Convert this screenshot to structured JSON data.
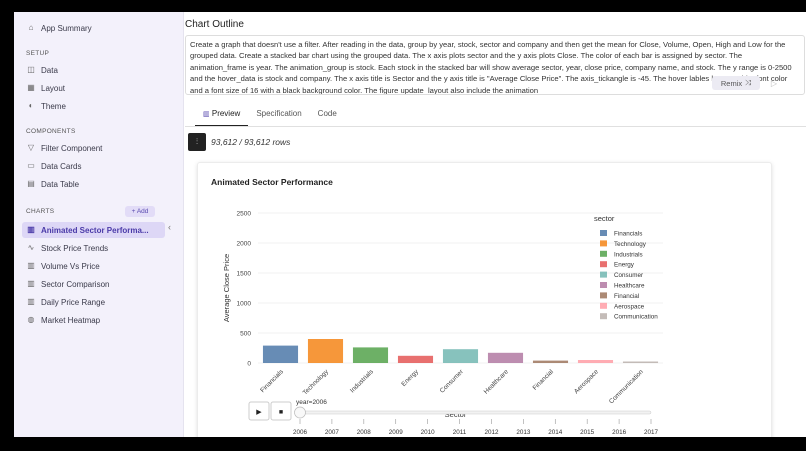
{
  "sidebar": {
    "app_summary": "App Summary",
    "setup_label": "SETUP",
    "setup_items": [
      "Data",
      "Layout",
      "Theme"
    ],
    "components_label": "COMPONENTS",
    "component_items": [
      "Filter Component",
      "Data Cards",
      "Data Table"
    ],
    "charts_label": "CHARTS",
    "add_label": "+ Add",
    "chart_items": [
      "Animated Sector Performa...",
      "Stock Price Trends",
      "Volume Vs Price",
      "Sector Comparison",
      "Daily Price Range",
      "Market Heatmap"
    ]
  },
  "main": {
    "outline_title": "Chart Outline",
    "outline_text": "Create a graph that doesn't use a filter.  After reading in the data, group by year, stock, sector and company and then get the mean for Close, Volume, Open, High and Low for the grouped data.   Create a stacked bar chart using the grouped data.  The x axis plots sector and the y axis plots Close. The color of each bar is assigned by sector. The animation_frame is year. The animation_group is stock.  Each stock in the stacked bar will show average sector, year, close price, company name, and stock.  The y range is 0-2500 and the hover_data is stock and company.  The x axis title is Sector and the y axis title is \"Average Close Price\". The axis_tickangle is -45.  The hover lables have a white font color and a font size of 16 with a black background color.  The figure update_layout also include the animation",
    "remix_label": "Remix",
    "tabs": [
      "Preview",
      "Specification",
      "Code"
    ],
    "rows_text": "93,612 / 93,612 rows"
  },
  "chart_data": {
    "type": "bar",
    "title": "Animated Sector Performance",
    "xlabel": "Sector",
    "ylabel": "Average Close Price",
    "ylim": [
      0,
      2500
    ],
    "yticks": [
      "0",
      "500",
      "1000",
      "1500",
      "2000",
      "2500"
    ],
    "legend_title": "sector",
    "legend_position": "right",
    "categories": [
      "Financials",
      "Technology",
      "Industrials",
      "Energy",
      "Consumer",
      "Healthcare",
      "Financial",
      "Aerospace",
      "Communication"
    ],
    "values": [
      290,
      400,
      260,
      120,
      230,
      170,
      40,
      50,
      25
    ],
    "colors": [
      "#4c78a8",
      "#f58518",
      "#54a24b",
      "#e45756",
      "#72b7b2",
      "#b279a2",
      "#9d755d",
      "#ff9da6",
      "#bab0ac"
    ],
    "animation_label": "year=2006",
    "years": [
      "2006",
      "2007",
      "2008",
      "2009",
      "2010",
      "2011",
      "2012",
      "2013",
      "2014",
      "2015",
      "2016",
      "2017"
    ]
  }
}
